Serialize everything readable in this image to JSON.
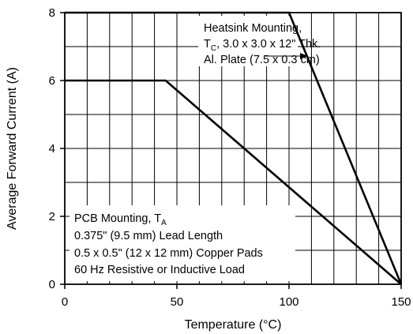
{
  "chart_data": {
    "type": "line",
    "xlabel": "Temperature (°C)",
    "ylabel": "Average Forward Current (A)",
    "xlim": [
      0,
      150
    ],
    "ylim": [
      0,
      8
    ],
    "grid": true,
    "x_ticks": [
      0,
      50,
      100,
      150
    ],
    "y_ticks": [
      0,
      2,
      4,
      6,
      8
    ],
    "series": [
      {
        "name": "Heatsink Mounting",
        "points": [
          [
            0,
            8
          ],
          [
            100,
            8
          ],
          [
            150,
            0
          ]
        ]
      },
      {
        "name": "PCB Mounting",
        "points": [
          [
            0,
            6
          ],
          [
            45,
            6
          ],
          [
            150,
            0
          ]
        ]
      }
    ],
    "annotations": {
      "heatsink": {
        "line1": "Heatsink Mounting,",
        "line2_prefix": "T",
        "line2_sub": "C",
        "line2_rest": ", 3.0 x 3.0 x 12\" Thk.",
        "line3": "Al. Plate (7.5 x 0.3 cm)"
      },
      "pcb": {
        "line1_prefix": "PCB Mounting, T",
        "line1_sub": "A",
        "line2": "0.375\" (9.5 mm) Lead Length",
        "line3": "0.5 x 0.5\" (12 x 12 mm) Copper Pads",
        "line4": "60 Hz Resistive or Inductive Load"
      }
    }
  }
}
